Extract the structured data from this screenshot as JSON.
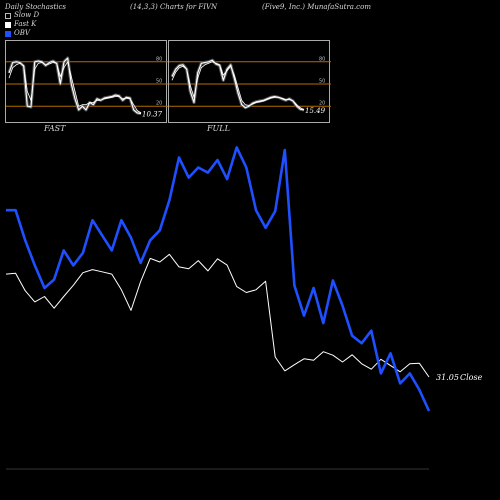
{
  "header": {
    "left": "Daily Stochastics",
    "mid": "(14,3,3) Charts for FIVN",
    "right": "(Five9, Inc.) MunafaSutra.com"
  },
  "legend": {
    "slow": "Slow  D",
    "fast": "Fast  K",
    "obv": "OBV"
  },
  "colors": {
    "obv": "#1e50ff",
    "price": "#ffffff",
    "level_line": "#b36b00",
    "panel_border": "#aaaaaa"
  },
  "chart_data": [
    {
      "type": "line",
      "panel": "FAST",
      "title": "FAST",
      "last_value_label": "10.37",
      "levels": [
        20,
        50,
        80
      ],
      "level_labels": [
        "80",
        "50",
        "20"
      ],
      "ylim": [
        0,
        100
      ],
      "series": [
        {
          "role": "fast_k",
          "values": [
            65,
            79,
            80,
            79,
            74,
            20,
            19,
            80,
            81,
            80,
            75,
            79,
            81,
            78,
            50,
            80,
            85,
            50,
            30,
            15,
            20,
            15,
            25,
            22,
            30,
            28,
            31,
            32,
            33,
            35,
            34,
            28,
            32,
            31,
            15,
            11,
            10
          ]
        },
        {
          "role": "slow_d",
          "values": [
            58,
            72,
            76,
            78,
            75,
            40,
            28,
            70,
            78,
            79,
            76,
            77,
            79,
            78,
            60,
            72,
            80,
            60,
            40,
            20,
            22,
            22,
            25,
            25,
            28,
            28,
            30,
            31,
            32,
            33,
            33,
            30,
            31,
            30,
            22,
            14,
            11
          ]
        }
      ]
    },
    {
      "type": "line",
      "panel": "FULL",
      "title": "FULL",
      "last_value_label": "15.49",
      "levels": [
        20,
        50,
        80
      ],
      "level_labels": [
        "80",
        "50",
        "20"
      ],
      "ylim": [
        0,
        100
      ],
      "series": [
        {
          "role": "full_k",
          "values": [
            60,
            70,
            75,
            76,
            70,
            40,
            25,
            65,
            78,
            79,
            80,
            82,
            77,
            75,
            55,
            70,
            76,
            58,
            38,
            22,
            18,
            20,
            24,
            26,
            27,
            28,
            30,
            32,
            33,
            32,
            30,
            28,
            30,
            27,
            20,
            16,
            15
          ]
        },
        {
          "role": "full_d",
          "values": [
            55,
            66,
            72,
            74,
            70,
            48,
            32,
            58,
            72,
            76,
            78,
            80,
            78,
            76,
            62,
            68,
            74,
            62,
            45,
            28,
            22,
            21,
            23,
            25,
            26,
            27,
            29,
            31,
            32,
            32,
            31,
            29,
            29,
            27,
            22,
            18,
            15
          ]
        }
      ]
    },
    {
      "type": "line",
      "panel": "main",
      "last_value_label": "31.05",
      "last_value_suffix": "Close",
      "series": [
        {
          "role": "obv",
          "values": [
            400,
            400,
            340,
            290,
            245,
            262,
            320,
            290,
            315,
            380,
            350,
            320,
            380,
            345,
            295,
            340,
            360,
            420,
            505,
            465,
            485,
            475,
            500,
            462,
            525,
            485,
            400,
            365,
            398,
            520,
            250,
            190,
            245,
            175,
            260,
            210,
            150,
            135,
            160,
            75,
            115,
            55,
            75,
            42,
            0
          ]
        },
        {
          "role": "close",
          "values": [
            54,
            54.2,
            50.3,
            47.8,
            49,
            46.4,
            49,
            51.5,
            54.3,
            55,
            54.5,
            54,
            50.5,
            45.9,
            52.3,
            57.5,
            56.7,
            58.4,
            55.6,
            55.2,
            57,
            54.7,
            57.4,
            56,
            51.2,
            49.9,
            50.5,
            52.4,
            35.5,
            32.4,
            33.8,
            35.1,
            34.8,
            36.7,
            35.9,
            34.4,
            36,
            34,
            32.8,
            35,
            33.6,
            32.2,
            34,
            34.1,
            31.05
          ]
        }
      ]
    }
  ]
}
